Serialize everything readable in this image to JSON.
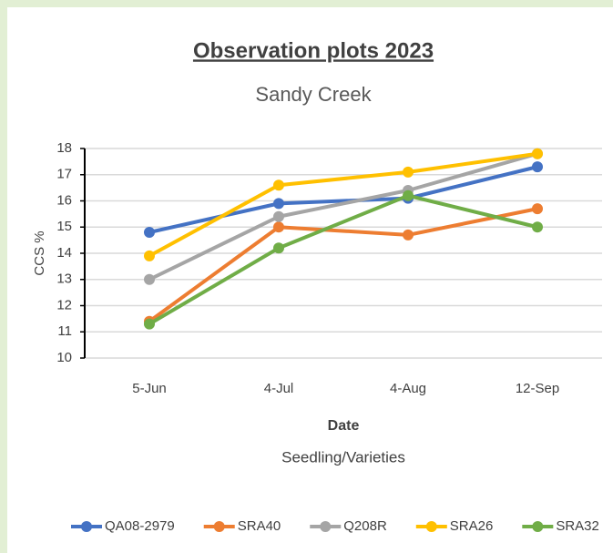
{
  "chart_data": {
    "type": "line",
    "title": "Observation plots 2023",
    "subtitle": "Sandy Creek",
    "y_label": "CCS %",
    "x_label": "Date",
    "x_sublabel": "Seedling/Varieties",
    "categories": [
      "5-Jun",
      "4-Jul",
      "4-Aug",
      "12-Sep"
    ],
    "series": [
      {
        "name": "QA08-2979",
        "color": "#4472c4",
        "values": [
          14.8,
          15.9,
          16.1,
          17.3
        ]
      },
      {
        "name": "SRA40",
        "color": "#ed7d31",
        "values": [
          11.4,
          15.0,
          14.7,
          15.7
        ]
      },
      {
        "name": "Q208R",
        "color": "#a5a5a5",
        "values": [
          13.0,
          15.4,
          16.4,
          17.8
        ]
      },
      {
        "name": "SRA26",
        "color": "#ffc000",
        "values": [
          13.9,
          16.6,
          17.1,
          17.8
        ]
      },
      {
        "name": "SRA32",
        "color": "#70ad47",
        "values": [
          11.3,
          14.2,
          16.2,
          15.0
        ]
      }
    ],
    "ylim": [
      10,
      18
    ],
    "yticks": [
      10,
      11,
      12,
      13,
      14,
      15,
      16,
      17,
      18
    ],
    "grid": true,
    "legend": "bottom"
  }
}
